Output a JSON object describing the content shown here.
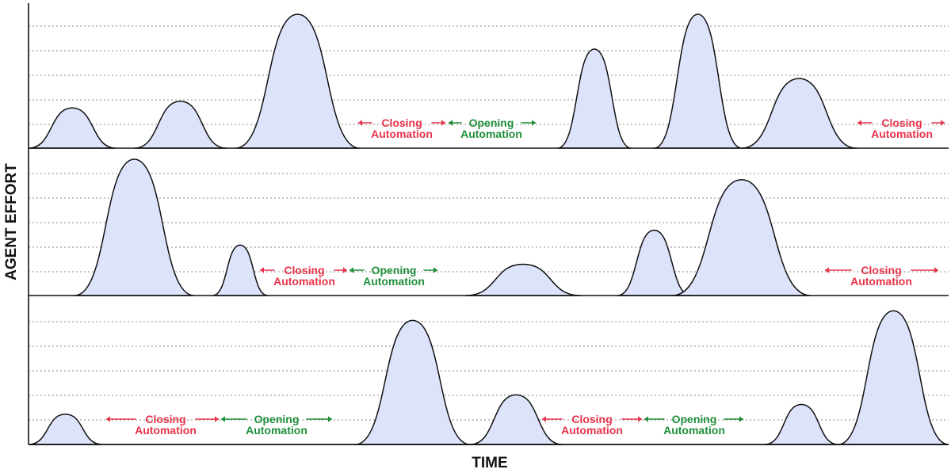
{
  "axes": {
    "x_label": "TIME",
    "y_label": "AGENT EFFORT"
  },
  "colors": {
    "closing": "#e8334a",
    "opening": "#1f8f3a",
    "peak_fill": "#dde3fb"
  },
  "panels": [
    {
      "peaks": [
        {
          "start": 0.0,
          "end": 0.095,
          "height": 0.3
        },
        {
          "start": 0.115,
          "end": 0.215,
          "height": 0.35
        },
        {
          "start": 0.225,
          "end": 0.36,
          "height": 1.0
        },
        {
          "start": 0.575,
          "end": 0.655,
          "height": 0.74
        },
        {
          "start": 0.68,
          "end": 0.775,
          "height": 1.0
        },
        {
          "start": 0.775,
          "end": 0.9,
          "height": 0.52
        }
      ],
      "labels": [
        {
          "lines": [
            "Closing",
            "Automation"
          ],
          "kind": "closing"
        },
        {
          "lines": [
            "Opening",
            "Automation"
          ],
          "kind": "opening"
        },
        {
          "lines": [
            "Closing",
            "Automation"
          ],
          "kind": "closing"
        }
      ]
    },
    {
      "peaks": [
        {
          "start": 0.05,
          "end": 0.18,
          "height": 1.0
        },
        {
          "start": 0.2,
          "end": 0.26,
          "height": 0.37
        },
        {
          "start": 0.475,
          "end": 0.6,
          "height": 0.23
        },
        {
          "start": 0.64,
          "end": 0.72,
          "height": 0.48
        },
        {
          "start": 0.7,
          "end": 0.85,
          "height": 0.85
        }
      ],
      "labels": [
        {
          "lines": [
            "Closing",
            "Automation"
          ],
          "kind": "closing"
        },
        {
          "lines": [
            "Opening",
            "Automation"
          ],
          "kind": "opening"
        },
        {
          "lines": [
            "Closing",
            "Automation"
          ],
          "kind": "closing"
        }
      ]
    },
    {
      "peaks": [
        {
          "start": 0.0,
          "end": 0.08,
          "height": 0.22
        },
        {
          "start": 0.355,
          "end": 0.48,
          "height": 0.9
        },
        {
          "start": 0.48,
          "end": 0.58,
          "height": 0.36
        },
        {
          "start": 0.8,
          "end": 0.88,
          "height": 0.29
        },
        {
          "start": 0.88,
          "end": 1.0,
          "height": 0.97
        }
      ],
      "labels": [
        {
          "lines": [
            "Closing",
            "Automation"
          ],
          "kind": "closing"
        },
        {
          "lines": [
            "Opening",
            "Automation"
          ],
          "kind": "opening"
        },
        {
          "lines": [
            "Closing",
            "Automation"
          ],
          "kind": "closing"
        },
        {
          "lines": [
            "Opening",
            "Automation"
          ],
          "kind": "opening"
        }
      ]
    }
  ]
}
